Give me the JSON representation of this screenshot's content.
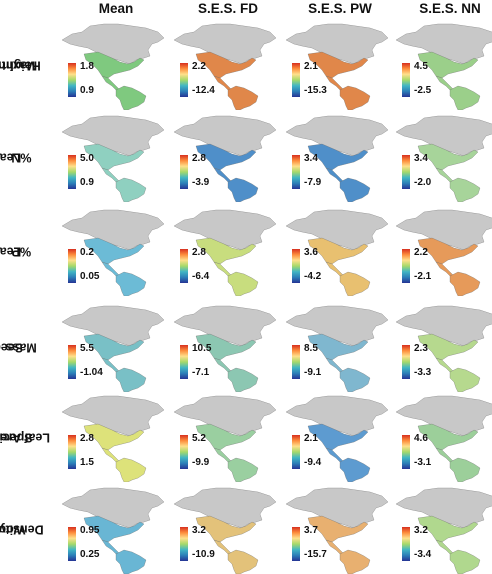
{
  "columns": [
    "Mean",
    "S.E.S. FD",
    "S.E.S. PW",
    "S.E.S. NN"
  ],
  "rows": [
    {
      "label": [
        "Maximum",
        "Height"
      ],
      "legend": [
        [
          "1.8",
          "0.9"
        ],
        [
          "2.2",
          "-12.4"
        ],
        [
          "2.1",
          "-15.3"
        ],
        [
          "4.5",
          "-2.5"
        ]
      ]
    },
    {
      "label": [
        "Leaf",
        "%N"
      ],
      "legend": [
        [
          "5.0",
          "0.9"
        ],
        [
          "2.8",
          "-3.9"
        ],
        [
          "3.4",
          "-7.9"
        ],
        [
          "3.4",
          "-2.0"
        ]
      ]
    },
    {
      "label": [
        "Leaf",
        "%P"
      ],
      "legend": [
        [
          "0.2",
          "0.05"
        ],
        [
          "2.8",
          "-6.4"
        ],
        [
          "3.6",
          "-4.2"
        ],
        [
          "2.2",
          "-2.1"
        ]
      ]
    },
    {
      "label": [
        "Seed",
        "Mass"
      ],
      "legend": [
        [
          "5.5",
          "-1.04"
        ],
        [
          "10.5",
          "-7.1"
        ],
        [
          "8.5",
          "-9.1"
        ],
        [
          "2.3",
          "-3.3"
        ]
      ]
    },
    {
      "label": [
        "Specific",
        "Leaf Area"
      ],
      "legend": [
        [
          "2.8",
          "1.5"
        ],
        [
          "5.2",
          "-9.9"
        ],
        [
          "2.1",
          "-9.4"
        ],
        [
          "4.6",
          "-3.1"
        ]
      ]
    },
    {
      "label": [
        "Wood",
        "Density"
      ],
      "legend": [
        [
          "0.95",
          "0.25"
        ],
        [
          "3.2",
          "-10.9"
        ],
        [
          "3.7",
          "-15.7"
        ],
        [
          "3.2",
          "-3.4"
        ]
      ]
    }
  ],
  "colors": {
    "land_nodata": "#c8c8c8",
    "high": "#d7301f",
    "mid": "#fee08b",
    "low": "#253494"
  },
  "panel_colors": [
    [
      "#7fc97f",
      "#e0874a",
      "#e0874a",
      "#9bcf8a"
    ],
    [
      "#8fd0c0",
      "#4f8fc9",
      "#4f8fc9",
      "#a7d49a"
    ],
    [
      "#6cbbd6",
      "#c8dd7e",
      "#e8c070",
      "#e69a5a"
    ],
    [
      "#79c0c6",
      "#8cc7b2",
      "#7fb7cf",
      "#b6d98e"
    ],
    [
      "#dde27a",
      "#9acfa0",
      "#5d9bd0",
      "#9ccf9a"
    ],
    [
      "#69b6d4",
      "#e3c27a",
      "#e8b070",
      "#b0d88e"
    ]
  ]
}
